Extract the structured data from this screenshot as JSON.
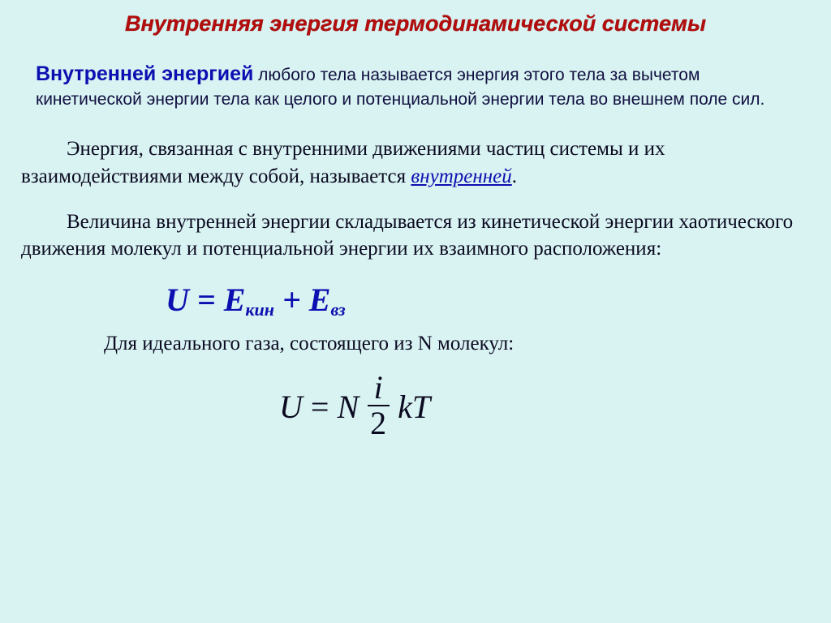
{
  "colors": {
    "background": "#d9f2f2",
    "title": "#b30d0d",
    "accent_blue": "#0c10b0",
    "body_text": "#0a0a20"
  },
  "typography": {
    "title_family": "Arial",
    "title_fontsize_pt": 20,
    "title_weight": "bold",
    "title_style": "italic",
    "def_family": "Arial",
    "def_fontsize_pt": 16,
    "body_family": "Times New Roman",
    "body_fontsize_pt": 19,
    "formula1_fontsize_pt": 30,
    "formula2_fontsize_pt": 30
  },
  "title": "Внутренняя энергия термодинамической системы",
  "definition": {
    "term": "Внутренней энергией",
    "rest": " любого тела называется энергия этого тела за вычетом кинетической энергии тела как целого и потенциальной энергии тела во внешнем поле сил."
  },
  "para1": {
    "text_before": "Энергия, связанная с внутренними движениями частиц системы и их взаимодействиями между собой, называется ",
    "keyword": "внутренней",
    "text_after": "."
  },
  "para2_text": "Величина внутренней энергии складывается из кинетической энергии хаотического движения молекул и потенциальной энергии их взаимного расположения:",
  "formula1": {
    "lhs": "U",
    "eq": " = ",
    "t1": "E",
    "sub1": "кин",
    "plus": " + ",
    "t2": "E",
    "sub2": "вз",
    "color": "#0c10b0"
  },
  "para3_text": "Для идеального газа, состоящего из N молекул:",
  "formula2": {
    "U": "U",
    "eq": "=",
    "N": "N",
    "frac_num": "i",
    "frac_den": "2",
    "kT": "kT",
    "color": "#0a0a20"
  }
}
